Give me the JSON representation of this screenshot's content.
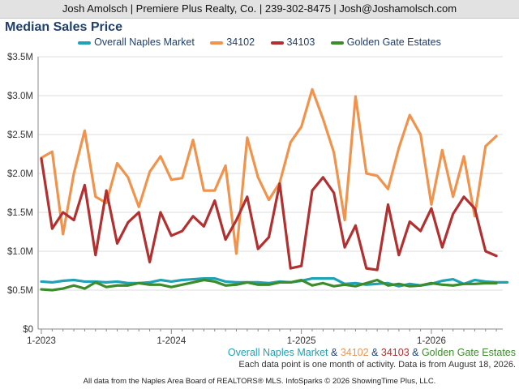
{
  "header": {
    "banner": "Josh Amolsch | Premiere Plus Realty, Co. | 239-302-8475 | Josh@Joshamolsch.com"
  },
  "chart_data": {
    "type": "line",
    "title": "Median Sales Price",
    "x_start": "2023-01",
    "x_tick_labels": [
      "1-2023",
      "1-2024",
      "1-2025",
      "1-2026"
    ],
    "y_tick_labels": [
      "$0",
      "$0.5M",
      "$1.0M",
      "$1.5M",
      "$2.0M",
      "$2.5M",
      "$3.0M",
      "$3.5M"
    ],
    "ylim": [
      0,
      3.5
    ],
    "y_unit": "$M",
    "grid": true,
    "legend_position": "top",
    "series": [
      {
        "name": "Overall Naples Market",
        "color": "#1fa2b5",
        "values": [
          0.61,
          0.6,
          0.62,
          0.63,
          0.61,
          0.61,
          0.6,
          0.61,
          0.59,
          0.59,
          0.6,
          0.63,
          0.61,
          0.63,
          0.64,
          0.65,
          0.65,
          0.61,
          0.6,
          0.6,
          0.6,
          0.59,
          0.61,
          0.6,
          0.62,
          0.65,
          0.65,
          0.65,
          0.58,
          0.59,
          0.57,
          0.58,
          0.59,
          0.55,
          0.58,
          0.56,
          0.58,
          0.62,
          0.64,
          0.58,
          0.63,
          0.61,
          0.6,
          0.6
        ]
      },
      {
        "name": "34102",
        "color": "#f0944d",
        "values": [
          2.2,
          2.28,
          1.22,
          2.0,
          2.55,
          1.7,
          1.62,
          2.13,
          1.95,
          1.57,
          2.02,
          2.22,
          1.92,
          1.94,
          2.43,
          1.78,
          1.78,
          2.1,
          0.97,
          2.46,
          1.95,
          1.66,
          1.88,
          2.4,
          2.6,
          3.08,
          2.7,
          2.27,
          1.4,
          2.99,
          2.0,
          1.97,
          1.8,
          2.33,
          2.75,
          2.5,
          1.6,
          2.3,
          1.7,
          2.22,
          1.45,
          2.35,
          2.48
        ]
      },
      {
        "name": "34103",
        "color": "#b23030",
        "values": [
          2.19,
          1.29,
          1.5,
          1.4,
          1.85,
          0.95,
          1.78,
          1.1,
          1.37,
          1.5,
          0.86,
          1.5,
          1.2,
          1.26,
          1.45,
          1.32,
          1.65,
          1.15,
          1.4,
          1.7,
          1.03,
          1.18,
          1.87,
          0.78,
          0.81,
          1.78,
          1.95,
          1.75,
          1.05,
          1.33,
          0.78,
          0.76,
          1.6,
          0.95,
          1.38,
          1.26,
          1.55,
          1.05,
          1.48,
          1.7,
          1.55,
          1.0,
          0.94
        ]
      },
      {
        "name": "Golden Gate Estates",
        "color": "#3d8c2c",
        "values": [
          0.51,
          0.5,
          0.52,
          0.56,
          0.52,
          0.6,
          0.54,
          0.56,
          0.56,
          0.59,
          0.57,
          0.57,
          0.54,
          0.57,
          0.6,
          0.63,
          0.61,
          0.56,
          0.57,
          0.6,
          0.57,
          0.57,
          0.6,
          0.6,
          0.63,
          0.56,
          0.59,
          0.55,
          0.57,
          0.55,
          0.59,
          0.63,
          0.56,
          0.58,
          0.55,
          0.56,
          0.59,
          0.57,
          0.56,
          0.58,
          0.58,
          0.59,
          0.59
        ]
      }
    ]
  },
  "caption": {
    "parts": [
      {
        "text": "Overall Naples Market",
        "color": "#1fa2b5"
      },
      {
        "text": " & ",
        "color": "#1f3f6e"
      },
      {
        "text": "34102",
        "color": "#f0944d"
      },
      {
        "text": " & ",
        "color": "#1f3f6e"
      },
      {
        "text": "34103",
        "color": "#b23030"
      },
      {
        "text": " & ",
        "color": "#1f3f6e"
      },
      {
        "text": "Golden Gate Estates",
        "color": "#3d8c2c"
      }
    ],
    "note": "Each data point is one month of activity. Data is from August 18, 2026."
  },
  "footer": {
    "text": "All data from the Naples Area Board of REALTORS® MLS. InfoSparks © 2026 ShowingTime Plus, LLC."
  }
}
